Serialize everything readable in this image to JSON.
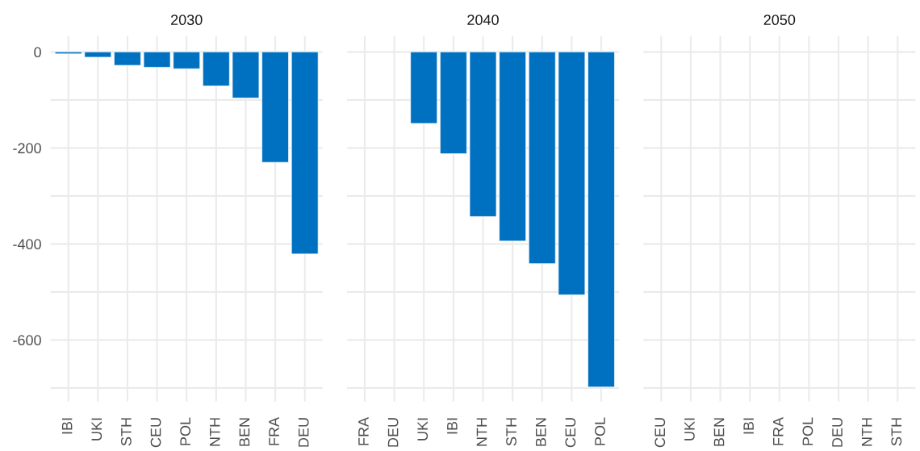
{
  "chart_data": [
    {
      "type": "bar",
      "title": "2030",
      "categories": [
        "IBI",
        "UKI",
        "STH",
        "CEU",
        "POL",
        "NTH",
        "BEN",
        "FRA",
        "DEU"
      ],
      "values": [
        -4,
        -11,
        -28,
        -32,
        -35,
        -71,
        -96,
        -230,
        -421
      ],
      "color": "#0070c0",
      "ylim": [
        -728,
        33
      ],
      "yticks": [
        0,
        {
          "value": -100,
          "label": null
        },
        -200,
        {
          "value": -300,
          "label": null
        },
        -400,
        {
          "value": -500,
          "label": null
        },
        -600,
        {
          "value": -700,
          "label": null
        }
      ],
      "grid": true
    },
    {
      "type": "bar",
      "title": "2040",
      "categories": [
        "FRA",
        "DEU",
        "UKI",
        "IBI",
        "NTH",
        "STH",
        "BEN",
        "CEU",
        "POL"
      ],
      "values": [
        null,
        null,
        -149,
        -212,
        -343,
        -394,
        -441,
        -506,
        -698
      ],
      "color": "#0070c0",
      "ylim": [
        -728,
        33
      ],
      "yticks": [
        0,
        {
          "value": -100,
          "label": null
        },
        -200,
        {
          "value": -300,
          "label": null
        },
        -400,
        {
          "value": -500,
          "label": null
        },
        -600,
        {
          "value": -700,
          "label": null
        }
      ],
      "grid": true,
      "tick_labels": "x"
    },
    {
      "type": "bar",
      "title": "2050",
      "categories": [
        "CEU",
        "UKI",
        "BEN",
        "IBI",
        "FRA",
        "POL",
        "DEU",
        "NTH",
        "STH"
      ],
      "values": [
        null,
        null,
        null,
        null,
        null,
        null,
        null,
        null,
        null
      ],
      "ylim": [
        -728,
        33
      ],
      "yticks": [
        0,
        {
          "value": -100,
          "label": null
        },
        -200,
        {
          "value": -300,
          "label": null
        },
        -400,
        {
          "value": -500,
          "label": null
        },
        -600,
        {
          "value": -700,
          "label": null
        }
      ],
      "grid": true,
      "tick_labels": "x"
    }
  ]
}
